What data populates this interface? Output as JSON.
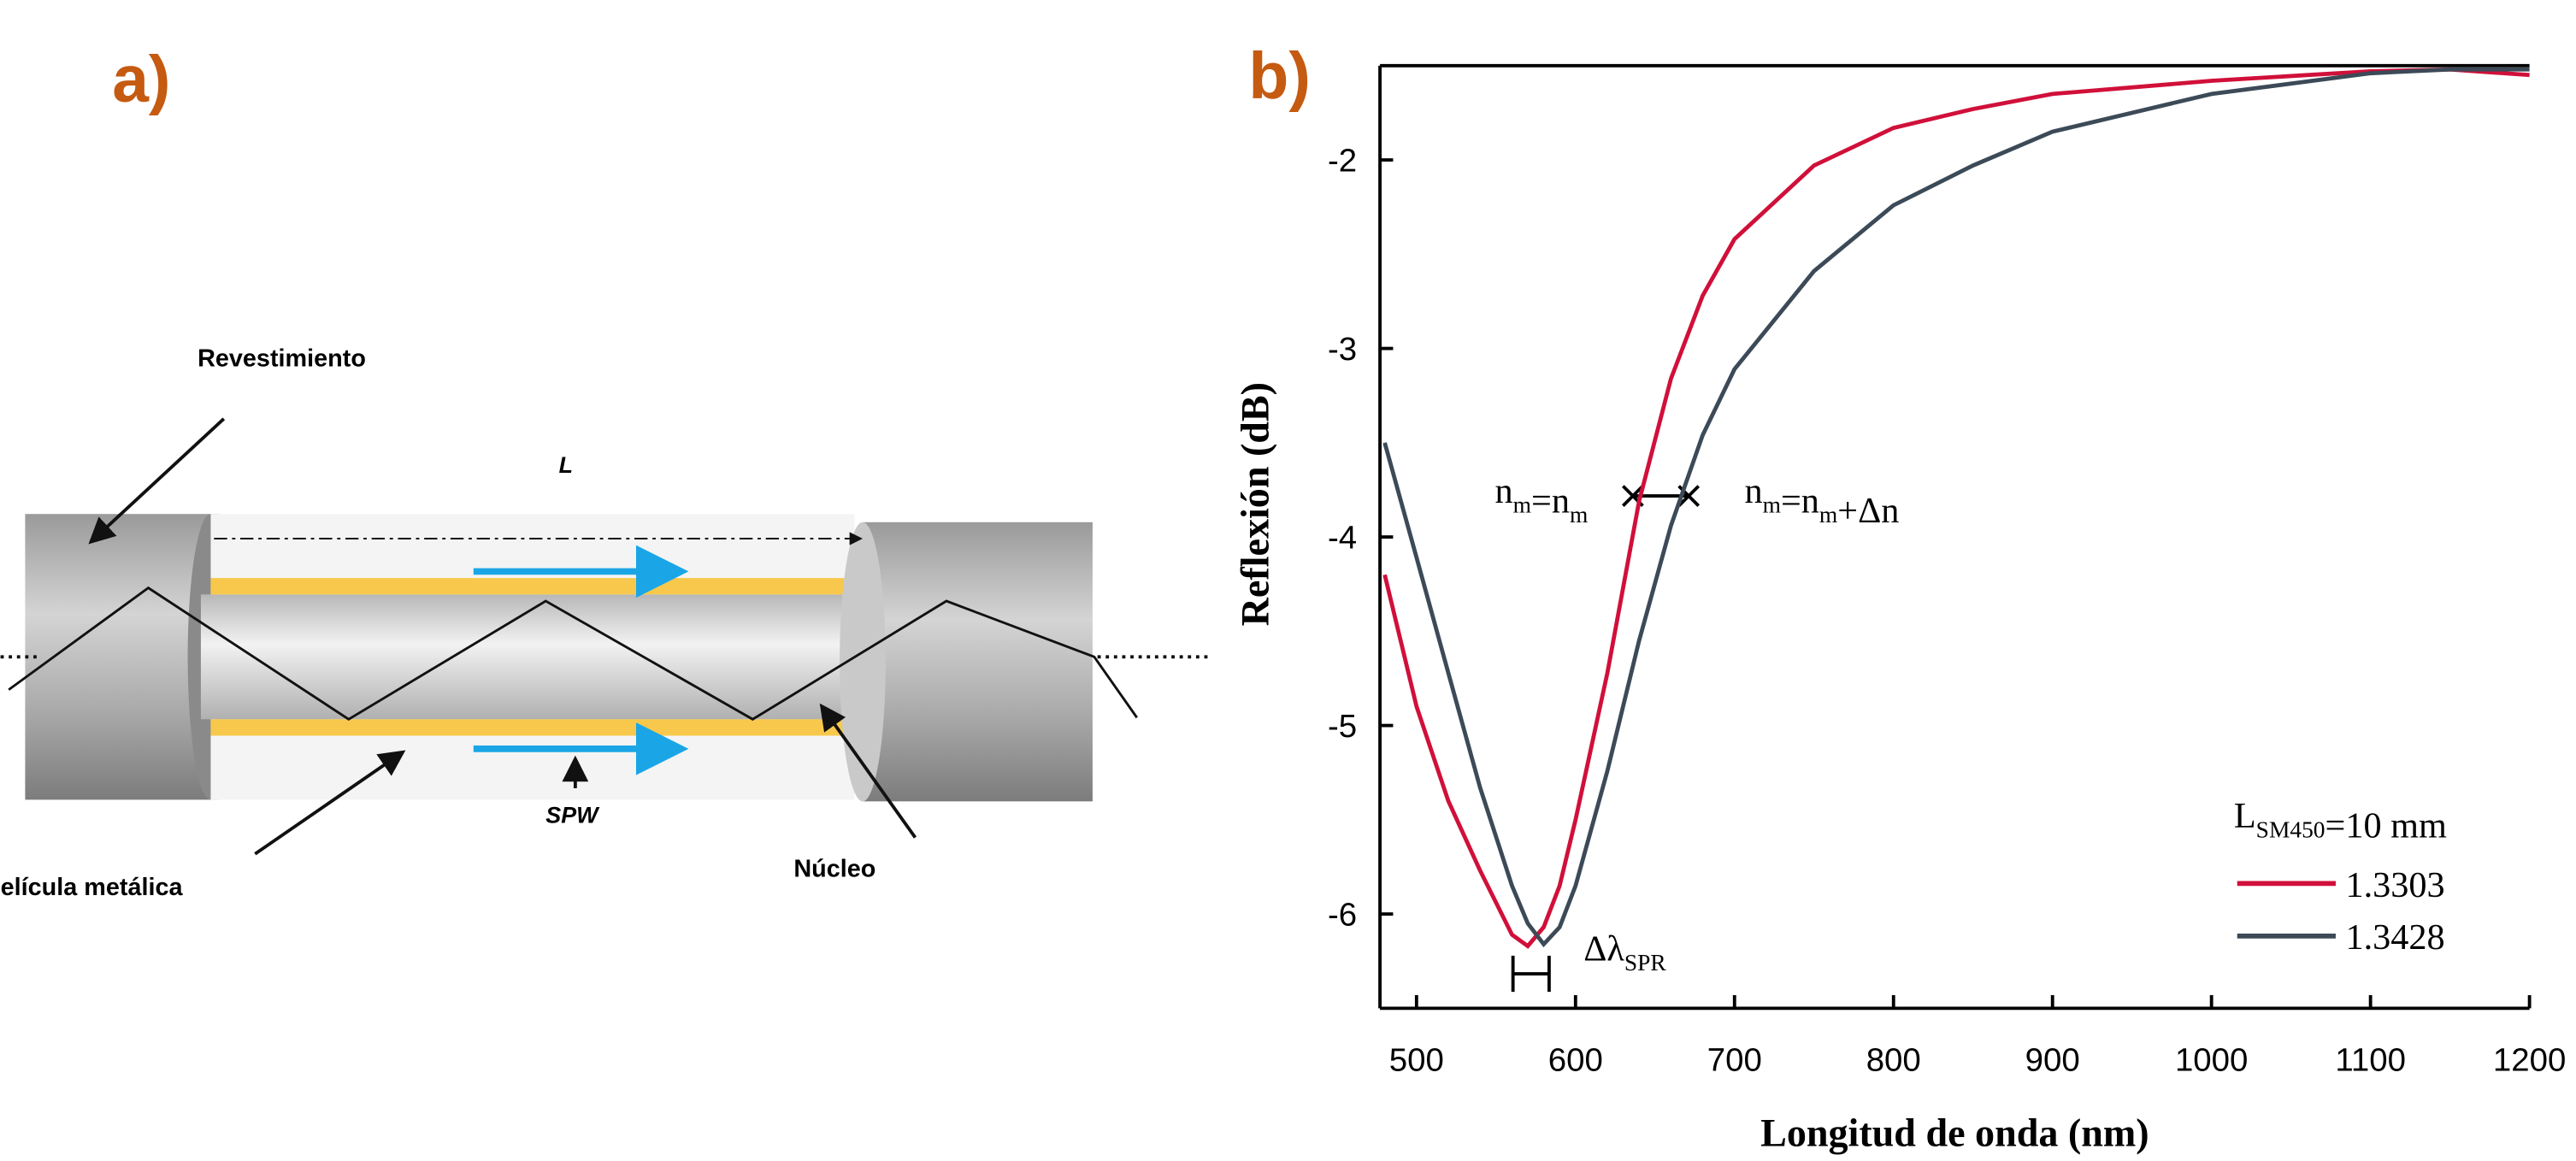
{
  "diagram": {
    "panel_label": "a)",
    "labels": {
      "cladding": "Revestimiento",
      "length": "L",
      "spw": "SPW",
      "film": "elícula metálica",
      "core": "Núcleo"
    }
  },
  "chart_data": {
    "type": "line",
    "panel_label": "b)",
    "x_label": "Longitud de onda (nm)",
    "y_label": "Reflexión (dB)",
    "x": [
      480,
      500,
      520,
      540,
      560,
      570,
      580,
      590,
      600,
      620,
      640,
      660,
      680,
      700,
      750,
      800,
      850,
      900,
      1000,
      1100,
      1150,
      1200
    ],
    "series": [
      {
        "name": "1.3303",
        "color": "#d0103a",
        "values": [
          -4.2,
          -4.9,
          -5.4,
          -5.77,
          -6.11,
          -6.17,
          -6.07,
          -5.85,
          -5.5,
          -4.72,
          -3.81,
          -3.16,
          -2.72,
          -2.42,
          -2.03,
          -1.83,
          -1.73,
          -1.65,
          -1.58,
          -1.53,
          -1.52,
          -1.55
        ]
      },
      {
        "name": "1.3428",
        "color": "#3c4a58",
        "values": [
          -3.5,
          -4.11,
          -4.72,
          -5.33,
          -5.85,
          -6.05,
          -6.16,
          -6.07,
          -5.85,
          -5.24,
          -4.55,
          -3.94,
          -3.46,
          -3.11,
          -2.59,
          -2.24,
          -2.03,
          -1.85,
          -1.65,
          -1.54,
          -1.52,
          -1.52
        ]
      }
    ],
    "xlim": [
      477,
      1200
    ],
    "ylim": [
      -6.5,
      -1.5
    ],
    "xticks": [
      500,
      600,
      700,
      800,
      900,
      1000,
      1100,
      1200
    ],
    "yticks": [
      -2,
      -3,
      -4,
      -5,
      -6
    ],
    "legend_title": [
      {
        "text": "L",
        "sub": "SM450"
      },
      {
        "text": "=10 mm"
      }
    ],
    "annotations": [
      [
        {
          "text": "n",
          "sub": "m"
        },
        {
          "text": "=n",
          "sub": "m"
        }
      ],
      [
        {
          "text": "n",
          "sub": "m"
        },
        {
          "text": "=n",
          "sub": "m"
        },
        {
          "text": "+Δn"
        }
      ],
      [
        {
          "text": "Δλ",
          "sub": "SPR"
        }
      ]
    ]
  }
}
